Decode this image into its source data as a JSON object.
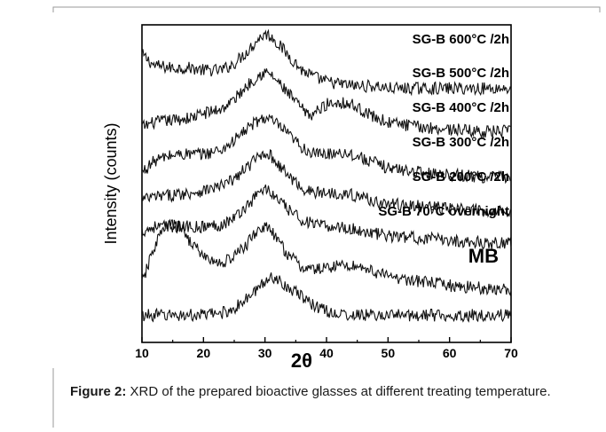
{
  "chart_data": {
    "type": "line",
    "ylabel": "Intensity (counts)",
    "xlabel": "2θ",
    "xlim": [
      10,
      70
    ],
    "x_ticks": [
      "10",
      "20",
      "30",
      "40",
      "50",
      "60",
      "70"
    ],
    "y_ticks": "none",
    "grid": false,
    "legend": "none (series labeled inline above each trace)",
    "stacked_offset": true,
    "series": [
      {
        "name": "SG-B 600°C /2h",
        "baseline": 10.8,
        "x": [
          10,
          12,
          15,
          18,
          20,
          23,
          25,
          27,
          29,
          30,
          31,
          32,
          34,
          36,
          38,
          40,
          42,
          45,
          48,
          50,
          55,
          60,
          65,
          70
        ],
        "y": [
          1.9,
          1.4,
          1.3,
          1.3,
          1.2,
          1.2,
          1.5,
          2.0,
          2.6,
          2.8,
          2.7,
          2.4,
          1.8,
          1.2,
          0.9,
          0.7,
          0.6,
          0.5,
          0.5,
          0.4,
          0.4,
          0.4,
          0.4,
          0.4
        ]
      },
      {
        "name": "SG-B 500°C /2h",
        "baseline": 8.9,
        "x": [
          10,
          12,
          15,
          18,
          20,
          23,
          25,
          27,
          29,
          30,
          31,
          32,
          34,
          36,
          37,
          38,
          40,
          42,
          44,
          46,
          48,
          50,
          55,
          60,
          65,
          70
        ],
        "y": [
          0.6,
          0.8,
          0.9,
          1.0,
          1.2,
          1.4,
          1.8,
          2.4,
          2.9,
          3.0,
          2.9,
          2.6,
          2.0,
          1.4,
          1.1,
          1.2,
          1.6,
          1.7,
          1.6,
          1.3,
          1.0,
          0.8,
          0.6,
          0.5,
          0.4,
          0.4
        ]
      },
      {
        "name": "SG-B 400°C /2h",
        "baseline": 7.0,
        "x": [
          10,
          12,
          14,
          16,
          18,
          20,
          23,
          25,
          27,
          29,
          30,
          31,
          32,
          34,
          36,
          38,
          40,
          42,
          44,
          46,
          48,
          50,
          55,
          60,
          65,
          70
        ],
        "y": [
          0.5,
          1.0,
          1.2,
          1.3,
          1.3,
          1.3,
          1.5,
          1.9,
          2.4,
          2.8,
          2.9,
          2.8,
          2.6,
          2.1,
          1.6,
          1.3,
          1.3,
          1.4,
          1.3,
          1.1,
          0.9,
          0.7,
          0.5,
          0.4,
          0.3,
          0.3
        ]
      },
      {
        "name": "SG-B 300°C /2h",
        "baseline": 5.6,
        "x": [
          10,
          12,
          15,
          18,
          20,
          23,
          25,
          27,
          29,
          30,
          31,
          32,
          34,
          36,
          38,
          40,
          42,
          44,
          46,
          48,
          50,
          55,
          60,
          65,
          70
        ],
        "y": [
          0.7,
          0.8,
          0.9,
          1.0,
          1.1,
          1.3,
          1.6,
          2.1,
          2.6,
          2.8,
          2.6,
          2.3,
          1.7,
          1.2,
          1.0,
          1.0,
          1.0,
          0.9,
          0.8,
          0.6,
          0.5,
          0.4,
          0.3,
          0.2,
          0.2
        ]
      },
      {
        "name": "SG-B 200°C /2h",
        "baseline": 4.3,
        "x": [
          10,
          12,
          15,
          18,
          20,
          23,
          25,
          27,
          28,
          29,
          30,
          31,
          32,
          34,
          36,
          38,
          40,
          42,
          44,
          46,
          48,
          50,
          55,
          60,
          65,
          70
        ],
        "y": [
          0.6,
          0.8,
          0.8,
          0.8,
          0.8,
          0.9,
          1.2,
          1.7,
          2.0,
          2.3,
          2.5,
          2.3,
          2.0,
          1.5,
          1.1,
          0.9,
          0.8,
          0.8,
          0.7,
          0.6,
          0.5,
          0.4,
          0.3,
          0.2,
          0.1,
          0.1
        ]
      },
      {
        "name": "SG-B 70°C overnight",
        "baseline": 2.2,
        "x": [
          10,
          11,
          12,
          13,
          14,
          15,
          16,
          17,
          18,
          20,
          22,
          23,
          25,
          27,
          28,
          29,
          30,
          31,
          32,
          34,
          36,
          38,
          40,
          42,
          44,
          46,
          48,
          50,
          55,
          60,
          65,
          70
        ],
        "y": [
          0.4,
          1.2,
          2.0,
          2.6,
          2.9,
          3.0,
          2.9,
          2.6,
          2.2,
          1.6,
          1.3,
          1.3,
          1.6,
          2.1,
          2.5,
          2.8,
          2.9,
          2.7,
          2.3,
          1.6,
          1.1,
          1.0,
          1.1,
          1.2,
          1.2,
          1.1,
          0.9,
          0.7,
          0.5,
          0.3,
          0.2,
          0.1
        ]
      },
      {
        "name": "MB",
        "baseline": 0.6,
        "x": [
          10,
          15,
          20,
          23,
          25,
          27,
          29,
          30,
          31,
          32,
          33,
          35,
          37,
          39,
          41,
          43,
          45,
          48,
          50,
          55,
          60,
          65,
          70
        ],
        "y": [
          0.6,
          0.6,
          0.6,
          0.7,
          0.9,
          1.3,
          1.8,
          2.1,
          2.3,
          2.2,
          2.0,
          1.6,
          1.2,
          0.9,
          0.7,
          0.6,
          0.6,
          0.6,
          0.6,
          0.6,
          0.6,
          0.6,
          0.6
        ]
      }
    ]
  },
  "caption": {
    "label": "Figure 2:",
    "text": " XRD of the prepared bioactive glasses at different treating temperature."
  }
}
